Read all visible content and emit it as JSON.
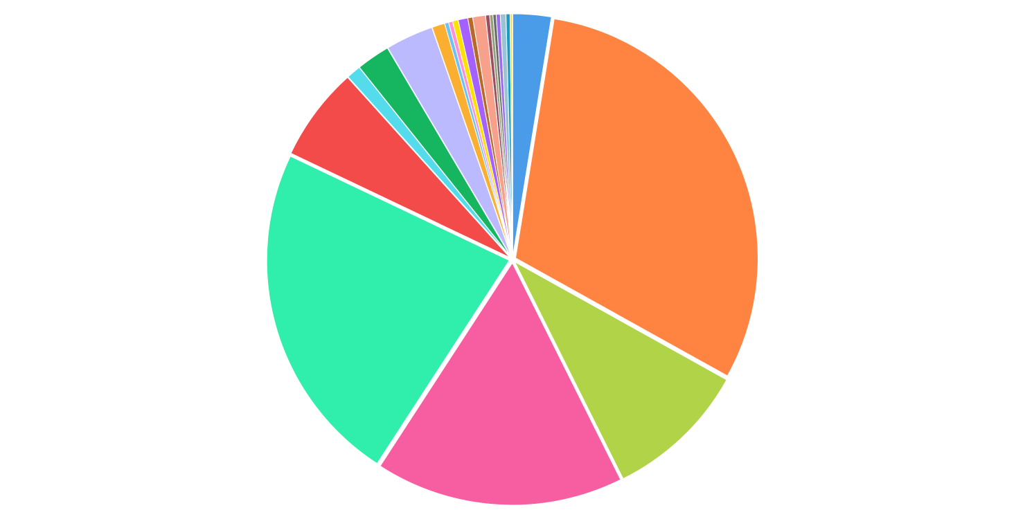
{
  "chart_data": {
    "type": "pie",
    "title": "",
    "legend": "none",
    "grid": false,
    "slices": [
      {
        "value": 2.4,
        "color": "#4a9be8"
      },
      {
        "value": 28.8,
        "color": "#ff8442"
      },
      {
        "value": 9.0,
        "color": "#b0d347"
      },
      {
        "value": 15.6,
        "color": "#f75ea1"
      },
      {
        "value": 21.6,
        "color": "#30eeac"
      },
      {
        "value": 5.9,
        "color": "#f34a4a"
      },
      {
        "value": 0.9,
        "color": "#55dcec"
      },
      {
        "value": 2.1,
        "color": "#16b660"
      },
      {
        "value": 3.0,
        "color": "#bbbaff"
      },
      {
        "value": 0.8,
        "color": "#fbaf30"
      },
      {
        "value": 0.25,
        "color": "#6dc2f2"
      },
      {
        "value": 0.25,
        "color": "#ff8fd6"
      },
      {
        "value": 0.35,
        "color": "#ffe100"
      },
      {
        "value": 0.6,
        "color": "#a461ff"
      },
      {
        "value": 0.3,
        "color": "#b8682a"
      },
      {
        "value": 0.8,
        "color": "#f7a08a"
      },
      {
        "value": 0.25,
        "color": "#9a4e62"
      },
      {
        "value": 0.2,
        "color": "#94a07a"
      },
      {
        "value": 0.2,
        "color": "#6c6c6c"
      },
      {
        "value": 0.25,
        "color": "#9b6cf2"
      },
      {
        "value": 0.35,
        "color": "#9ac4d6"
      },
      {
        "value": 0.25,
        "color": "#1a9bc4"
      },
      {
        "value": 0.15,
        "color": "#ede05e"
      }
    ]
  }
}
